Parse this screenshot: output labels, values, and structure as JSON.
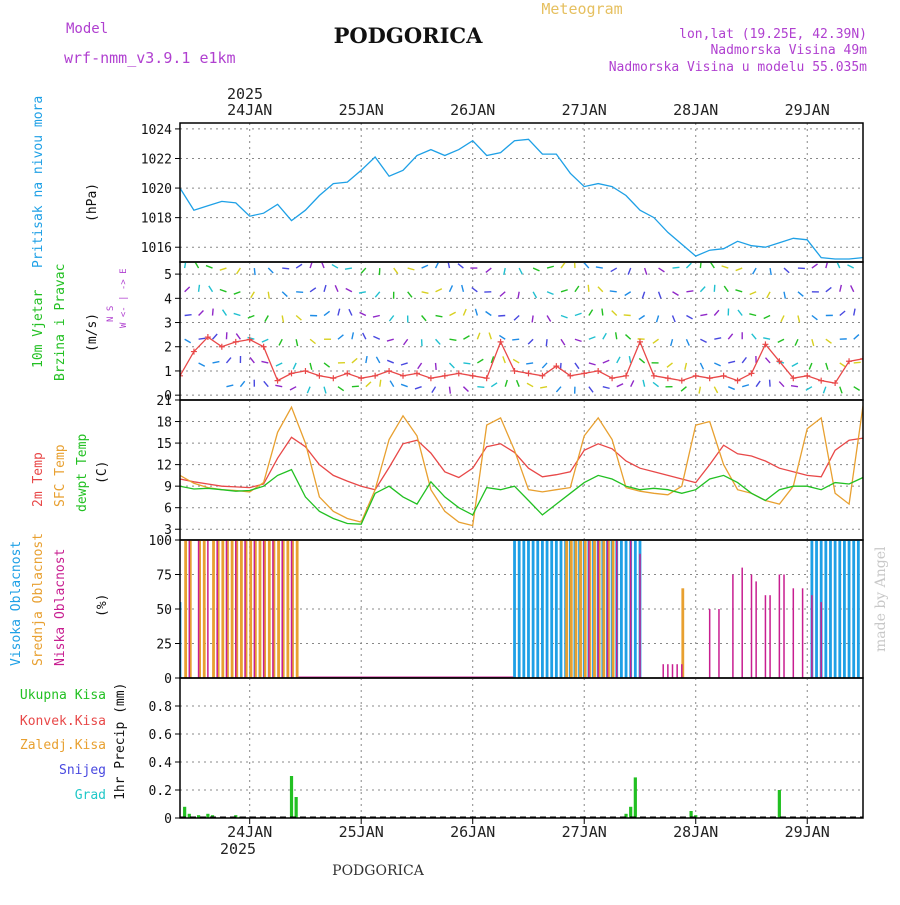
{
  "header": {
    "model_label": "Model",
    "model_name": "wrf-nmm_v3.9.1  e1km",
    "city": "PODGORICA",
    "product": "Meteogram",
    "coords": "lon,lat (19.25E, 42.39N)",
    "elevation": "Nadmorska Visina 49m",
    "model_elevation": "Nadmorska Visina u modelu 55.035m",
    "credit": "made by Angel",
    "footer_city": "PODGORICA"
  },
  "colors": {
    "purple": "#b040d0",
    "blue": "#1ea0e6",
    "green": "#22c022",
    "red": "#e84848",
    "orange": "#e8a030",
    "magenta": "#c81e90",
    "snow": "#4848e0",
    "hail": "#20c8c8",
    "gold": "#e6c060"
  },
  "time_axis": {
    "year": "2025",
    "days": [
      "24JAN",
      "25JAN",
      "26JAN",
      "27JAN",
      "28JAN",
      "29JAN"
    ],
    "start_hour_offset": -9,
    "end_hour": 138
  },
  "chart_data": [
    {
      "type": "line",
      "title": "Pritisak na nivou mora",
      "ylabel": "(hPa)",
      "ylim": [
        1015,
        1024.4
      ],
      "yticks": [
        "1016",
        "1018",
        "1020",
        "1022",
        "1024"
      ],
      "x_hours": [
        -9,
        -6,
        -3,
        0,
        3,
        6,
        9,
        12,
        15,
        18,
        21,
        24,
        27,
        30,
        33,
        36,
        39,
        42,
        45,
        48,
        51,
        54,
        57,
        60,
        63,
        66,
        69,
        72,
        75,
        78,
        81,
        84,
        87,
        90,
        93,
        96,
        99,
        102,
        105,
        108,
        111,
        114,
        117,
        120,
        123,
        126,
        129,
        132,
        135,
        138
      ],
      "series": [
        {
          "name": "Pritisak na nivou mora",
          "color": "#1ea0e6",
          "values": [
            1020.0,
            1018.5,
            1018.8,
            1019.1,
            1019.0,
            1018.1,
            1018.3,
            1018.9,
            1017.8,
            1018.5,
            1019.5,
            1020.3,
            1020.4,
            1021.2,
            1022.1,
            1020.8,
            1021.2,
            1022.2,
            1022.6,
            1022.2,
            1022.6,
            1023.2,
            1022.2,
            1022.4,
            1023.2,
            1023.3,
            1022.3,
            1022.3,
            1021.0,
            1020.1,
            1020.3,
            1020.1,
            1019.5,
            1018.5,
            1018.0,
            1017.0,
            1016.2,
            1015.4,
            1015.8,
            1015.9,
            1016.4,
            1016.1,
            1016.0,
            1016.3,
            1016.6,
            1016.5,
            1015.3,
            1015.2,
            1015.2,
            1015.3
          ]
        }
      ]
    },
    {
      "type": "line",
      "title": "10m Vjetar Brzina i Pravac",
      "ylabel": "(m/s)",
      "compass": "W <- | -> E",
      "compass_vertical": "N  S",
      "ylim": [
        -0.2,
        5.5
      ],
      "yticks": [
        "0",
        "1",
        "2",
        "3",
        "4",
        "5"
      ],
      "x_hours": [
        -9,
        -6,
        -3,
        0,
        3,
        6,
        9,
        12,
        15,
        18,
        21,
        24,
        27,
        30,
        33,
        36,
        39,
        42,
        45,
        48,
        51,
        54,
        57,
        60,
        63,
        66,
        69,
        72,
        75,
        78,
        81,
        84,
        87,
        90,
        93,
        96,
        99,
        102,
        105,
        108,
        111,
        114,
        117,
        120,
        123,
        126,
        129,
        132,
        135,
        138
      ],
      "series": [
        {
          "name": "10m Vjetar",
          "color": "#e84848",
          "values": [
            0.8,
            1.8,
            2.4,
            2.0,
            2.2,
            2.3,
            2.0,
            0.6,
            0.9,
            1.0,
            0.8,
            0.7,
            0.9,
            0.7,
            0.8,
            1.0,
            0.8,
            0.9,
            0.7,
            0.8,
            0.9,
            0.8,
            0.7,
            2.2,
            1.0,
            0.9,
            0.8,
            1.2,
            0.8,
            0.9,
            1.0,
            0.7,
            0.8,
            2.2,
            0.8,
            0.7,
            0.6,
            0.8,
            0.7,
            0.8,
            0.6,
            0.9,
            2.1,
            1.4,
            0.7,
            0.8,
            0.6,
            0.5,
            1.4,
            1.5
          ]
        }
      ]
    },
    {
      "type": "line",
      "title": "2m Temp / SFC Temp / dewpt Temp",
      "ylabel": "(C)",
      "ylim": [
        1.5,
        21
      ],
      "yticks": [
        "3",
        "6",
        "9",
        "12",
        "15",
        "18",
        "21"
      ],
      "x_hours": [
        -9,
        -6,
        -3,
        0,
        3,
        6,
        9,
        12,
        15,
        18,
        21,
        24,
        27,
        30,
        33,
        36,
        39,
        42,
        45,
        48,
        51,
        54,
        57,
        60,
        63,
        66,
        69,
        72,
        75,
        78,
        81,
        84,
        87,
        90,
        93,
        96,
        99,
        102,
        105,
        108,
        111,
        114,
        117,
        120,
        123,
        126,
        129,
        132,
        135,
        138
      ],
      "series": [
        {
          "name": "2m Temp",
          "color": "#e84848",
          "values": [
            10.0,
            9.6,
            9.3,
            9.0,
            8.9,
            8.8,
            9.3,
            12.9,
            15.8,
            14.5,
            12.0,
            10.5,
            9.7,
            9.0,
            8.5,
            11.6,
            14.9,
            15.4,
            13.6,
            11.0,
            10.2,
            11.5,
            14.5,
            14.9,
            13.7,
            11.5,
            10.3,
            10.6,
            11.0,
            14.0,
            14.9,
            14.2,
            12.5,
            11.5,
            11.0,
            10.5,
            10.0,
            9.5,
            12.0,
            14.7,
            13.5,
            13.2,
            12.5,
            11.5,
            11.0,
            10.5,
            10.3,
            14.0,
            15.4,
            15.7
          ]
        },
        {
          "name": "SFC Temp",
          "color": "#e8a030",
          "values": [
            10.5,
            9.4,
            8.8,
            8.5,
            8.4,
            8.2,
            9.5,
            16.5,
            20.0,
            15.0,
            7.5,
            5.5,
            4.5,
            4.0,
            8.5,
            15.5,
            18.8,
            16.0,
            8.5,
            5.5,
            4.0,
            3.5,
            17.5,
            18.5,
            14.0,
            8.5,
            8.2,
            8.5,
            8.8,
            16.0,
            18.5,
            15.5,
            8.8,
            8.3,
            8.0,
            7.8,
            9.0,
            17.5,
            18.0,
            12.0,
            8.5,
            8.0,
            7.0,
            6.5,
            9.0,
            17.0,
            18.5,
            8.0,
            6.5,
            20.2
          ]
        },
        {
          "name": "dewpt Temp",
          "color": "#22c022",
          "values": [
            9.0,
            8.6,
            8.7,
            8.5,
            8.3,
            8.4,
            9.0,
            10.5,
            11.3,
            7.5,
            5.5,
            4.5,
            3.8,
            3.7,
            8.0,
            9.0,
            7.5,
            6.5,
            9.6,
            7.5,
            6.0,
            5.0,
            8.8,
            8.5,
            9.0,
            7.0,
            5.0,
            6.5,
            8.0,
            9.5,
            10.5,
            10.0,
            9.0,
            8.5,
            8.7,
            8.5,
            8.0,
            8.5,
            10.0,
            10.5,
            9.5,
            8.0,
            7.0,
            8.5,
            9.0,
            9.0,
            8.5,
            9.5,
            9.3,
            10.2
          ]
        }
      ]
    },
    {
      "type": "bar",
      "title": "Visoka / Srednja / Niska Oblacnost",
      "ylabel": "(%)",
      "ylim": [
        0,
        100
      ],
      "yticks": [
        "0",
        "25",
        "50",
        "75",
        "100"
      ],
      "series": [
        {
          "name": "Visoka Oblacnost",
          "color": "#1ea0e6",
          "x_hours": [
            -9,
            -6,
            -3,
            0,
            3,
            6,
            9,
            12,
            15,
            63,
            64,
            65,
            66,
            67,
            68,
            69,
            70,
            71,
            72,
            73,
            74,
            75,
            76,
            77,
            78,
            79,
            80,
            81,
            82,
            83,
            84,
            85,
            86,
            87,
            88,
            89,
            90,
            127,
            128,
            129,
            130,
            131,
            132,
            133,
            134,
            135,
            136,
            137
          ],
          "values": [
            55,
            0,
            0,
            0,
            0,
            0,
            0,
            0,
            0,
            100,
            100,
            100,
            100,
            100,
            100,
            100,
            100,
            100,
            100,
            100,
            100,
            100,
            100,
            100,
            100,
            100,
            100,
            100,
            100,
            100,
            100,
            100,
            100,
            100,
            100,
            100,
            100,
            100,
            100,
            100,
            100,
            100,
            100,
            100,
            100,
            100,
            100,
            100
          ]
        },
        {
          "name": "Srednja Oblacnost",
          "color": "#e8a030",
          "x_hours": [
            -8,
            -7,
            -5,
            -4,
            -2,
            -1,
            0,
            1,
            2,
            3,
            4,
            5,
            6,
            7,
            8,
            9,
            10,
            11,
            12,
            13,
            14,
            15,
            16,
            74,
            75,
            76,
            77,
            78,
            79,
            80,
            81,
            82,
            83,
            84,
            99,
            100,
            101
          ],
          "values": [
            100,
            100,
            100,
            100,
            100,
            100,
            100,
            100,
            100,
            100,
            100,
            100,
            100,
            100,
            100,
            100,
            100,
            100,
            100,
            100,
            100,
            100,
            100,
            100,
            100,
            100,
            100,
            100,
            100,
            100,
            100,
            100,
            100,
            100,
            65,
            0,
            0
          ]
        },
        {
          "name": "Niska Oblacnost",
          "color": "#c81e90",
          "x_hours": [
            -7,
            -5,
            -3,
            -1,
            1,
            3,
            5,
            7,
            9,
            11,
            13,
            15,
            79,
            81,
            83,
            85,
            88,
            90,
            95,
            96,
            97,
            98,
            99,
            105,
            107,
            110,
            112,
            114,
            115,
            117,
            118,
            120,
            121,
            123,
            125,
            127,
            129
          ],
          "values": [
            100,
            100,
            100,
            100,
            100,
            100,
            100,
            100,
            100,
            100,
            100,
            100,
            100,
            100,
            100,
            100,
            100,
            90,
            10,
            10,
            10,
            10,
            10,
            50,
            50,
            75,
            80,
            75,
            70,
            60,
            60,
            75,
            75,
            65,
            65,
            60,
            55
          ]
        }
      ]
    },
    {
      "type": "bar",
      "title": "1hr Precip",
      "ylabel": "1hr Precip (mm)",
      "ylim": [
        0,
        1.0
      ],
      "yticks": [
        "0",
        "0.2",
        "0.4",
        "0.6",
        "0.8"
      ],
      "legend": [
        "Ukupna Kisa",
        "Konvek.Kisa",
        "Zaledj.Kisa",
        "Snijeg",
        "Grad"
      ],
      "series": [
        {
          "name": "Ukupna Kisa",
          "color": "#22c022",
          "x_hours": [
            -8,
            -7,
            -5,
            -3,
            -2,
            3,
            4,
            15,
            16,
            87,
            88,
            89,
            101,
            102,
            106,
            120
          ],
          "values": [
            0.08,
            0.03,
            0.02,
            0.03,
            0.02,
            0.02,
            0.01,
            0.3,
            0.15,
            0.03,
            0.08,
            0.29,
            0.05,
            0.02,
            0.01,
            0.2
          ]
        },
        {
          "name": "Konvek.Kisa",
          "color": "#e84848",
          "x_hours": [],
          "values": []
        },
        {
          "name": "Zaledj.Kisa",
          "color": "#e8a030",
          "x_hours": [],
          "values": []
        },
        {
          "name": "Snijeg",
          "color": "#4848e0",
          "x_hours": [],
          "values": []
        },
        {
          "name": "Grad",
          "color": "#20c8c8",
          "x_hours": [],
          "values": []
        }
      ]
    }
  ],
  "panel_labels": {
    "pressure": [
      "Pritisak na nivou mora"
    ],
    "wind": [
      "10m Vjetar",
      "Brzina i Pravac"
    ],
    "temp": [
      "2m Temp",
      "SFC Temp",
      "dewpt Temp"
    ],
    "cloud": [
      "Visoka Oblacnost",
      "Srednja Oblacnost",
      "Niska Oblacnost"
    ]
  }
}
